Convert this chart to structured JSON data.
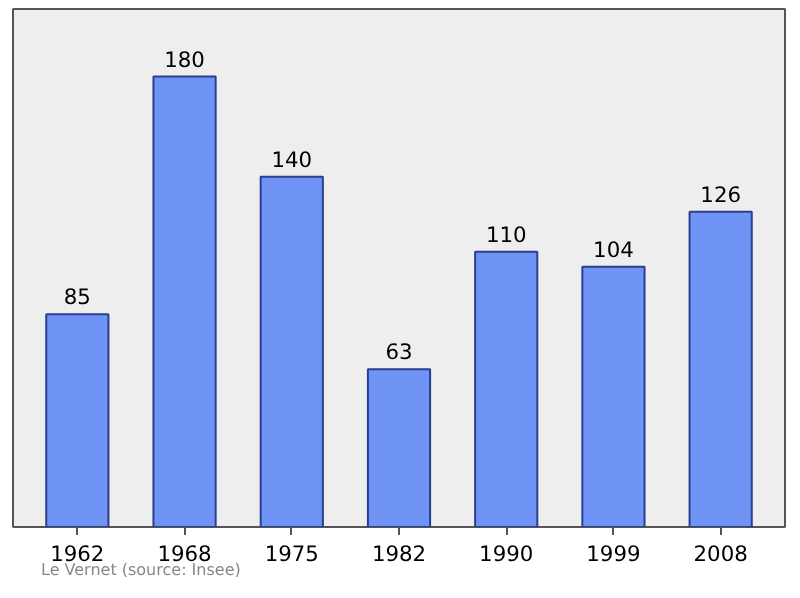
{
  "chart_data": {
    "type": "bar",
    "categories": [
      "1962",
      "1968",
      "1975",
      "1982",
      "1990",
      "1999",
      "2008"
    ],
    "values": [
      85,
      180,
      140,
      63,
      110,
      104,
      126
    ],
    "color": "#6f94f5",
    "data_labels": true,
    "ylim": [
      0,
      207
    ],
    "grid": false,
    "annotations": [
      "Le Vernet    (source: Insee)"
    ]
  }
}
